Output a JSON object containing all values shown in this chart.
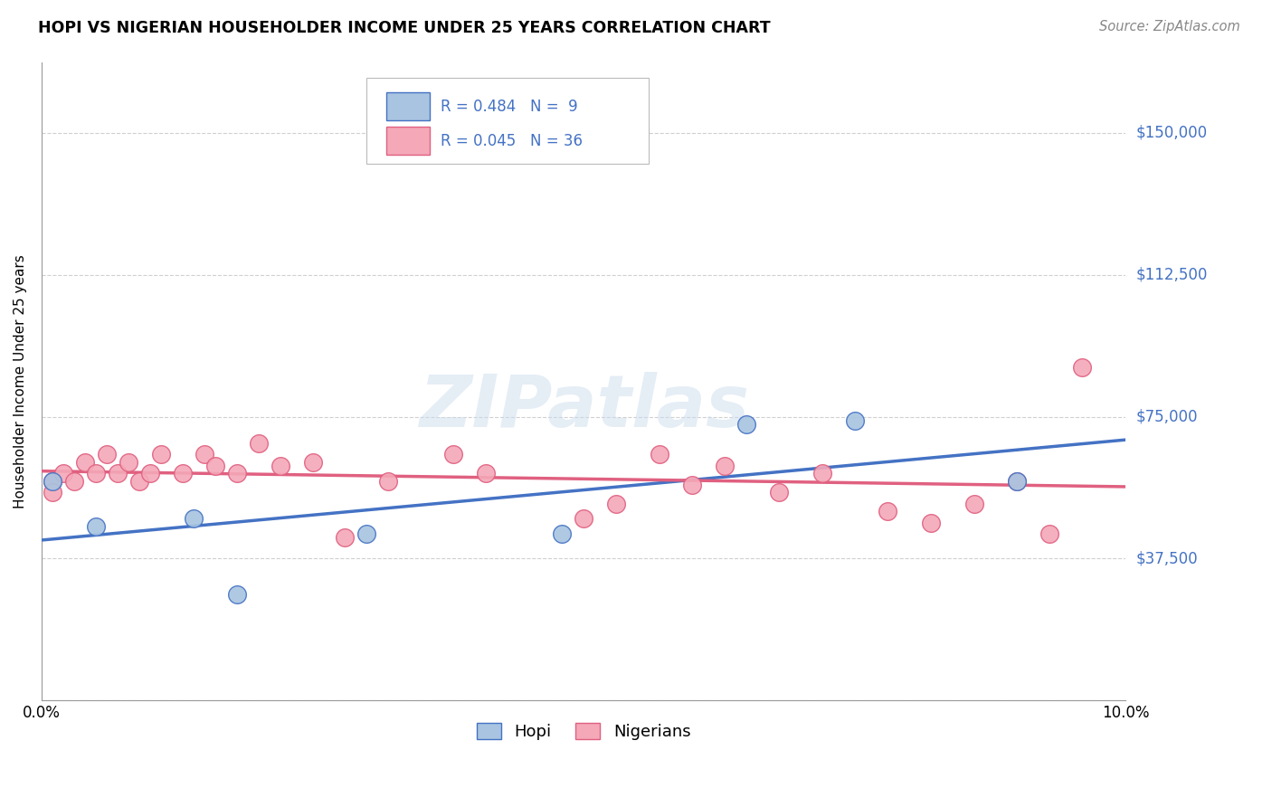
{
  "title": "HOPI VS NIGERIAN HOUSEHOLDER INCOME UNDER 25 YEARS CORRELATION CHART",
  "source": "Source: ZipAtlas.com",
  "ylabel": "Householder Income Under 25 years",
  "watermark": "ZIPatlas",
  "xlim": [
    0.0,
    0.1
  ],
  "ylim": [
    0,
    168750
  ],
  "yticks": [
    0,
    37500,
    75000,
    112500,
    150000
  ],
  "ytick_labels": [
    "",
    "$37,500",
    "$75,000",
    "$112,500",
    "$150,000"
  ],
  "xticks": [
    0.0,
    0.02,
    0.04,
    0.06,
    0.08,
    0.1
  ],
  "xtick_labels": [
    "0.0%",
    "",
    "",
    "",
    "",
    "10.0%"
  ],
  "hopi_color": "#a8c4e0",
  "nigerian_color": "#f4a8b8",
  "hopi_line_color": "#4472c4",
  "nigerian_line_color": "#e06080",
  "legend_r_hopi": "R = 0.484",
  "legend_n_hopi": "N =  9",
  "legend_r_nigerian": "R = 0.045",
  "legend_n_nigerian": "N = 36",
  "hopi_x": [
    0.001,
    0.005,
    0.014,
    0.018,
    0.03,
    0.048,
    0.065,
    0.075,
    0.09
  ],
  "hopi_y": [
    58000,
    46000,
    48000,
    28000,
    44000,
    44000,
    73000,
    74000,
    58000
  ],
  "nigerian_x": [
    0.001,
    0.001,
    0.002,
    0.003,
    0.004,
    0.005,
    0.006,
    0.007,
    0.008,
    0.009,
    0.01,
    0.011,
    0.013,
    0.015,
    0.016,
    0.018,
    0.02,
    0.022,
    0.025,
    0.028,
    0.032,
    0.038,
    0.041,
    0.05,
    0.053,
    0.057,
    0.06,
    0.063,
    0.068,
    0.072,
    0.078,
    0.082,
    0.086,
    0.09,
    0.093,
    0.096
  ],
  "nigerian_y": [
    58000,
    55000,
    60000,
    58000,
    63000,
    60000,
    65000,
    60000,
    63000,
    58000,
    60000,
    65000,
    60000,
    65000,
    62000,
    60000,
    68000,
    62000,
    63000,
    43000,
    58000,
    65000,
    60000,
    48000,
    52000,
    65000,
    57000,
    62000,
    55000,
    60000,
    50000,
    47000,
    52000,
    58000,
    44000,
    88000
  ],
  "background_color": "#ffffff",
  "grid_color": "#d0d0d0"
}
